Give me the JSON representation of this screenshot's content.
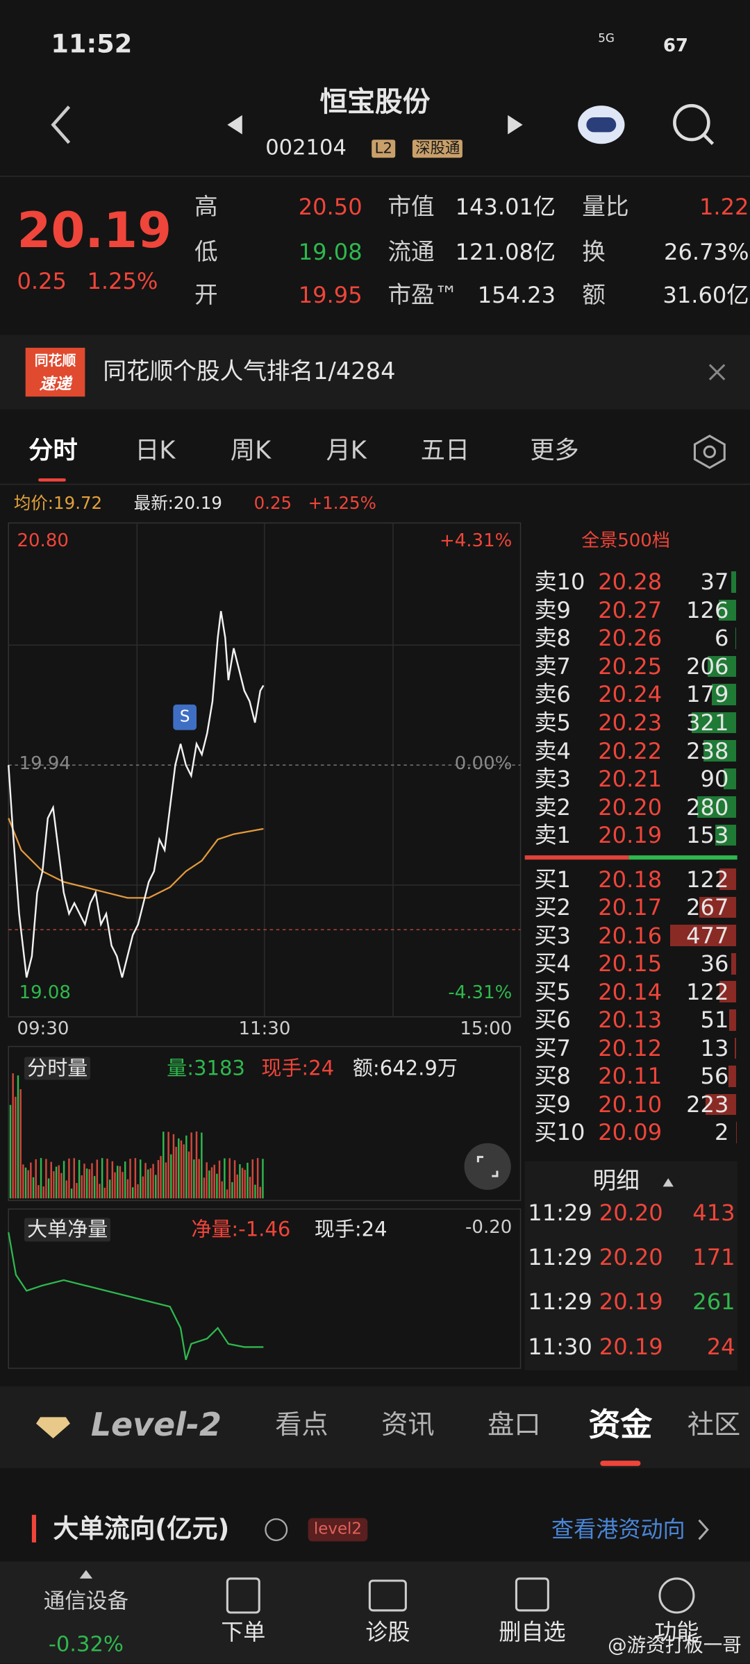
{
  "status": {
    "time": "11:52",
    "network": "5G",
    "battery": "67"
  },
  "header": {
    "title": "恒宝股份",
    "code": "002104",
    "badges": [
      "L2",
      "深股通"
    ]
  },
  "quote": {
    "price": "20.19",
    "change": "0.25",
    "pct": "1.25%",
    "stats": [
      {
        "label": "高",
        "value": "20.50",
        "color": "#f0453a"
      },
      {
        "label": "低",
        "value": "19.08",
        "color": "#2fb84e"
      },
      {
        "label": "开",
        "value": "19.95",
        "color": "#f0453a"
      },
      {
        "label": "市值",
        "value": "143.01亿",
        "color": "#e6e6e6"
      },
      {
        "label": "流通",
        "value": "121.08亿",
        "color": "#e6e6e6"
      },
      {
        "label": "市盈™",
        "value": "154.23",
        "color": "#e6e6e6"
      },
      {
        "label": "量比",
        "value": "1.22",
        "color": "#f0453a"
      },
      {
        "label": "换",
        "value": "26.73%",
        "color": "#e6e6e6"
      },
      {
        "label": "额",
        "value": "31.60亿",
        "color": "#e6e6e6"
      }
    ]
  },
  "banner": {
    "logo": [
      "同花顺",
      "速递"
    ],
    "text": "同花顺个股人气排名1/4284"
  },
  "tabs": [
    "分时",
    "日K",
    "周K",
    "月K",
    "五日",
    "更多"
  ],
  "chart": {
    "avg": "均价:19.72",
    "latest": "最新:20.19",
    "change": "0.25",
    "pct": "+1.25%",
    "high": "20.80",
    "high_pct": "+4.31%",
    "base": "19.94",
    "base_pct": "0.00%",
    "low": "19.08",
    "low_pct": "-4.31%",
    "signal": "S",
    "times": [
      "09:30",
      "11:30",
      "15:00"
    ]
  },
  "volume": {
    "title": "分时量",
    "vol": "量:3183",
    "hand": "现手:24",
    "amount": "额:642.9万"
  },
  "net": {
    "title": "大单净量",
    "net": "净量:-1.46",
    "hand": "现手:24",
    "scale": "-0.20"
  },
  "orderbook": {
    "title": "全景500档",
    "asks": [
      {
        "label": "卖10",
        "price": "20.28",
        "vol": 37
      },
      {
        "label": "卖9",
        "price": "20.27",
        "vol": 126
      },
      {
        "label": "卖8",
        "price": "20.26",
        "vol": 6
      },
      {
        "label": "卖7",
        "price": "20.25",
        "vol": 206
      },
      {
        "label": "卖6",
        "price": "20.24",
        "vol": 179
      },
      {
        "label": "卖5",
        "price": "20.23",
        "vol": 321
      },
      {
        "label": "卖4",
        "price": "20.22",
        "vol": 238
      },
      {
        "label": "卖3",
        "price": "20.21",
        "vol": 90
      },
      {
        "label": "卖2",
        "price": "20.20",
        "vol": 280
      },
      {
        "label": "卖1",
        "price": "20.19",
        "vol": 153
      }
    ],
    "bids": [
      {
        "label": "买1",
        "price": "20.18",
        "vol": 122
      },
      {
        "label": "买2",
        "price": "20.17",
        "vol": 267
      },
      {
        "label": "买3",
        "price": "20.16",
        "vol": 477
      },
      {
        "label": "买4",
        "price": "20.15",
        "vol": 36
      },
      {
        "label": "买5",
        "price": "20.14",
        "vol": 122
      },
      {
        "label": "买6",
        "price": "20.13",
        "vol": 51
      },
      {
        "label": "买7",
        "price": "20.12",
        "vol": 13
      },
      {
        "label": "买8",
        "price": "20.11",
        "vol": 56
      },
      {
        "label": "买9",
        "price": "20.10",
        "vol": 223
      },
      {
        "label": "买10",
        "price": "20.09",
        "vol": 2
      }
    ]
  },
  "detail": {
    "title": "明细",
    "rows": [
      {
        "time": "11:29",
        "price": "20.20",
        "vol": "413",
        "color": "#f0453a"
      },
      {
        "time": "11:29",
        "price": "20.20",
        "vol": "171",
        "color": "#f0453a"
      },
      {
        "time": "11:29",
        "price": "20.19",
        "vol": "261",
        "color": "#2fb84e"
      },
      {
        "time": "11:30",
        "price": "20.19",
        "vol": "24",
        "color": "#f0453a"
      }
    ]
  },
  "bottom_tabs": [
    "Level-2",
    "看点",
    "资讯",
    "盘口",
    "资金",
    "社区"
  ],
  "section": {
    "title": "大单流向(亿元)",
    "badge": "level2",
    "link": "查看港资动向"
  },
  "nav": {
    "industry": "通信设备",
    "industry_pct": "-0.32%",
    "items": [
      "下单",
      "诊股",
      "删自选",
      "功能"
    ],
    "watermark": "@游资打板一哥"
  }
}
